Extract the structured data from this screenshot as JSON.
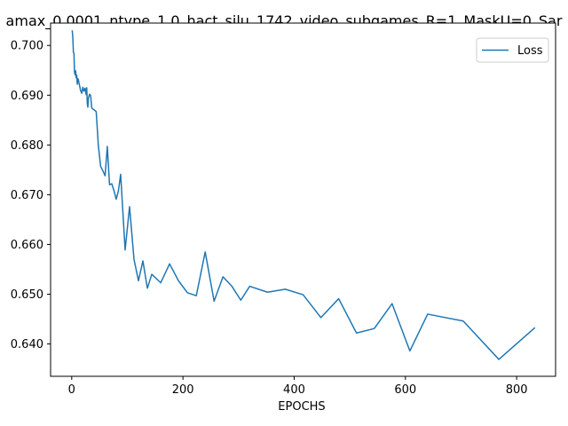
{
  "chart_data": {
    "type": "line",
    "title": "amax_0.0001_ntype_1.0_hact_silu_1742_video_subgames_R=1_MaskU=0_Sar",
    "xlabel": "EPOCHS",
    "ylabel": "",
    "xlim": [
      -38,
      870
    ],
    "ylim": [
      0.6335,
      0.7045
    ],
    "xticks": [
      0,
      200,
      400,
      600,
      800
    ],
    "xtick_labels": [
      "0",
      "200",
      "400",
      "600",
      "800"
    ],
    "yticks": [
      0.64,
      0.65,
      0.66,
      0.67,
      0.68,
      0.69,
      0.7
    ],
    "ytick_labels": [
      "0.640",
      "0.650",
      "0.660",
      "0.670",
      "0.680",
      "0.690",
      "0.700"
    ],
    "grid": false,
    "legend_position": "upper right",
    "series": [
      {
        "name": "Loss",
        "color": "#1f77b4",
        "x": [
          1,
          2,
          3,
          4,
          5,
          6,
          7,
          8,
          9,
          10,
          11,
          12,
          13,
          14,
          16,
          18,
          20,
          22,
          24,
          26,
          27,
          28,
          29,
          30,
          32,
          34,
          36,
          38,
          40,
          44,
          48,
          52,
          56,
          60,
          64,
          68,
          72,
          76,
          80,
          84,
          88,
          96,
          104,
          112,
          120,
          128,
          136,
          144,
          160,
          176,
          192,
          208,
          224,
          240,
          256,
          272,
          288,
          304,
          320,
          352,
          384,
          416,
          448,
          480,
          512,
          544,
          576,
          608,
          640,
          704,
          768,
          832
        ],
        "y": [
          0.7029,
          0.7016,
          0.6986,
          0.6984,
          0.6947,
          0.6941,
          0.6949,
          0.6935,
          0.694,
          0.6922,
          0.6933,
          0.6931,
          0.6925,
          0.692,
          0.6909,
          0.6904,
          0.6916,
          0.6908,
          0.6914,
          0.6901,
          0.6915,
          0.6884,
          0.6876,
          0.6894,
          0.6902,
          0.6899,
          0.6875,
          0.6872,
          0.6871,
          0.6867,
          0.6797,
          0.6757,
          0.6748,
          0.6738,
          0.6797,
          0.672,
          0.6722,
          0.6708,
          0.6691,
          0.6708,
          0.6741,
          0.6589,
          0.6676,
          0.657,
          0.6527,
          0.6567,
          0.6512,
          0.654,
          0.6523,
          0.6561,
          0.6527,
          0.6503,
          0.6497,
          0.6585,
          0.6486,
          0.6535,
          0.6516,
          0.6488,
          0.6516,
          0.6504,
          0.651,
          0.6499,
          0.6453,
          0.6491,
          0.6422,
          0.6431,
          0.6481,
          0.6386,
          0.646,
          0.6446,
          0.6369,
          0.6432
        ]
      }
    ]
  }
}
